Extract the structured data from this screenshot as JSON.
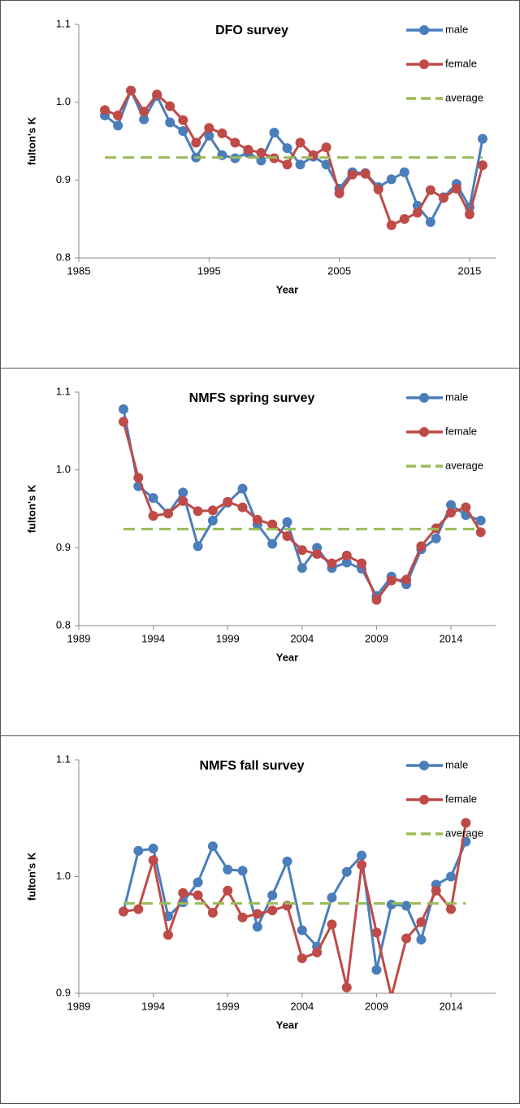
{
  "chart_data": [
    {
      "type": "line",
      "title": "DFO survey",
      "x_label": "Year",
      "y_label": "fulton's K",
      "x": [
        1987,
        1988,
        1989,
        1990,
        1991,
        1992,
        1993,
        1994,
        1995,
        1996,
        1997,
        1998,
        1999,
        2000,
        2001,
        2002,
        2003,
        2004,
        2005,
        2006,
        2007,
        2008,
        2009,
        2010,
        2011,
        2012,
        2013,
        2014,
        2015,
        2016
      ],
      "series": [
        {
          "name": "male",
          "color": "#4a7ebb",
          "values": [
            0.983,
            0.97,
            1.015,
            0.978,
            1.008,
            0.974,
            0.963,
            0.929,
            0.957,
            0.932,
            0.928,
            0.935,
            0.925,
            0.961,
            0.941,
            0.92,
            0.93,
            0.92,
            0.889,
            0.91,
            0.909,
            0.891,
            0.901,
            0.91,
            0.867,
            0.846,
            0.878,
            0.895,
            0.865,
            0.953
          ]
        },
        {
          "name": "female",
          "color": "#be4b48",
          "values": [
            0.99,
            0.983,
            1.015,
            0.988,
            1.01,
            0.995,
            0.977,
            0.948,
            0.967,
            0.96,
            0.948,
            0.939,
            0.935,
            0.928,
            0.92,
            0.948,
            0.932,
            0.942,
            0.883,
            0.907,
            0.908,
            0.888,
            0.842,
            0.85,
            0.858,
            0.887,
            0.877,
            0.889,
            0.856,
            0.919
          ]
        },
        {
          "name": "average",
          "color": "#9bbb59",
          "dashed": true,
          "constant": 0.929
        }
      ],
      "xlim": [
        1985,
        2017
      ],
      "xticks": [
        1985,
        1995,
        2005,
        2015
      ],
      "ylim": [
        0.8,
        1.1
      ],
      "yticks": [
        0.8,
        0.9,
        {
          "value": 1.0,
          "label": "1.0"
        },
        1.1
      ]
    },
    {
      "type": "line",
      "title": "NMFS spring survey",
      "x_label": "Year",
      "y_label": "fulton's K",
      "x": [
        1992,
        1993,
        1994,
        1995,
        1996,
        1997,
        1998,
        1999,
        2000,
        2001,
        2002,
        2003,
        2004,
        2005,
        2006,
        2007,
        2008,
        2009,
        2010,
        2011,
        2012,
        2013,
        2014,
        2015,
        2016
      ],
      "series": [
        {
          "name": "male",
          "color": "#4a7ebb",
          "values": [
            1.078,
            0.979,
            0.964,
            0.944,
            0.971,
            0.902,
            0.935,
            0.958,
            0.976,
            0.93,
            0.905,
            0.933,
            0.874,
            0.9,
            0.874,
            0.881,
            0.873,
            0.838,
            0.863,
            0.853,
            0.898,
            0.912,
            0.955,
            0.942,
            0.935
          ]
        },
        {
          "name": "female",
          "color": "#be4b48",
          "values": [
            1.062,
            0.99,
            0.941,
            0.944,
            0.96,
            0.947,
            0.948,
            0.959,
            0.952,
            0.936,
            0.93,
            0.915,
            0.897,
            0.892,
            0.88,
            0.89,
            0.88,
            0.833,
            0.858,
            0.859,
            0.902,
            0.925,
            0.945,
            0.952,
            0.92
          ]
        },
        {
          "name": "average",
          "color": "#9bbb59",
          "dashed": true,
          "constant": 0.924
        }
      ],
      "xlim": [
        1989,
        2017
      ],
      "xticks": [
        1989,
        1994,
        1999,
        2004,
        2009,
        2014
      ],
      "ylim": [
        0.8,
        1.1
      ],
      "yticks": [
        0.8,
        0.9,
        {
          "value": 1.0,
          "label": "1.0"
        },
        1.1
      ]
    },
    {
      "type": "line",
      "title": "NMFS fall survey",
      "x_label": "Year",
      "y_label": "fulton's K",
      "x": [
        1992,
        1993,
        1994,
        1995,
        1996,
        1997,
        1998,
        1999,
        2000,
        2001,
        2002,
        2003,
        2004,
        2005,
        2006,
        2007,
        2008,
        2009,
        2010,
        2011,
        2012,
        2013,
        2014,
        2015
      ],
      "series": [
        {
          "name": "male",
          "color": "#4a7ebb",
          "values": [
            0.97,
            1.022,
            1.024,
            0.966,
            0.978,
            0.995,
            1.026,
            1.006,
            1.005,
            0.957,
            0.984,
            1.013,
            0.954,
            0.94,
            0.982,
            1.004,
            1.018,
            0.92,
            0.976,
            0.975,
            0.946,
            0.993,
            1.0,
            1.03
          ]
        },
        {
          "name": "female",
          "color": "#be4b48",
          "values": [
            0.97,
            0.972,
            1.014,
            0.95,
            0.986,
            0.984,
            0.969,
            0.988,
            0.965,
            0.968,
            0.971,
            0.975,
            0.93,
            0.935,
            0.959,
            0.905,
            1.01,
            0.952,
            0.897,
            0.947,
            0.961,
            0.988,
            0.972,
            1.046
          ]
        },
        {
          "name": "average",
          "color": "#9bbb59",
          "dashed": true,
          "constant": 0.977
        }
      ],
      "xlim": [
        1989,
        2017
      ],
      "xticks": [
        1989,
        1994,
        1999,
        2004,
        2009,
        2014
      ],
      "ylim": [
        0.9,
        1.1
      ],
      "yticks": [
        0.9,
        {
          "value": 1.0,
          "label": "1.0"
        },
        1.1
      ]
    }
  ]
}
